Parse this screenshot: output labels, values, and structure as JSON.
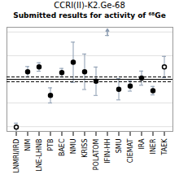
{
  "chart_data": {
    "type": "errorbar",
    "title": "CCRI(II)-K2.Ge-68",
    "subtitle": "Submitted results for activity of ⁶⁸Ge",
    "categories": [
      "LNMRI/IRD",
      "NIM",
      "LNE-LHNB",
      "PTB",
      "BAEC",
      "NMU",
      "KRISS",
      "POLATOM",
      "IFIN-HH",
      "SMU",
      "CIEMAT",
      "IRA",
      "INER",
      "TAEK"
    ],
    "values": [
      null,
      0.32,
      0.52,
      -0.68,
      0.28,
      0.72,
      0.32,
      -0.08,
      null,
      -0.42,
      -0.28,
      0.05,
      -0.48,
      0.52
    ],
    "error_lo": [
      null,
      0.22,
      0.18,
      0.32,
      0.18,
      0.85,
      0.75,
      0.6,
      null,
      0.45,
      0.22,
      0.3,
      0.18,
      0.45
    ],
    "error_hi": [
      null,
      0.22,
      0.18,
      0.32,
      0.18,
      0.85,
      0.75,
      0.6,
      null,
      0.45,
      0.22,
      0.3,
      0.18,
      0.45
    ],
    "clip_lo": [
      -1.85,
      null,
      null,
      null,
      null,
      null,
      null,
      null,
      null,
      null,
      null,
      null,
      null,
      null
    ],
    "clip_hi": [
      null,
      null,
      null,
      null,
      null,
      null,
      null,
      null,
      1.85,
      null,
      null,
      null,
      null,
      null
    ],
    "marker": [
      "open",
      "filled",
      "filled",
      "filled",
      "filled",
      "filled",
      "filled",
      "filled",
      null,
      "filled",
      "filled",
      "filled",
      "filled",
      "open"
    ],
    "reference_lines": [
      {
        "value": 0.0,
        "line_style": "solid"
      },
      {
        "value": 0.1,
        "line_style": "dashed"
      },
      {
        "value": -0.1,
        "line_style": "dashed"
      }
    ],
    "ylim": [
      -2.2,
      2.2
    ],
    "yticks": [
      -2,
      -1,
      0,
      1,
      2
    ],
    "grid": true,
    "tick_labels": "x"
  }
}
